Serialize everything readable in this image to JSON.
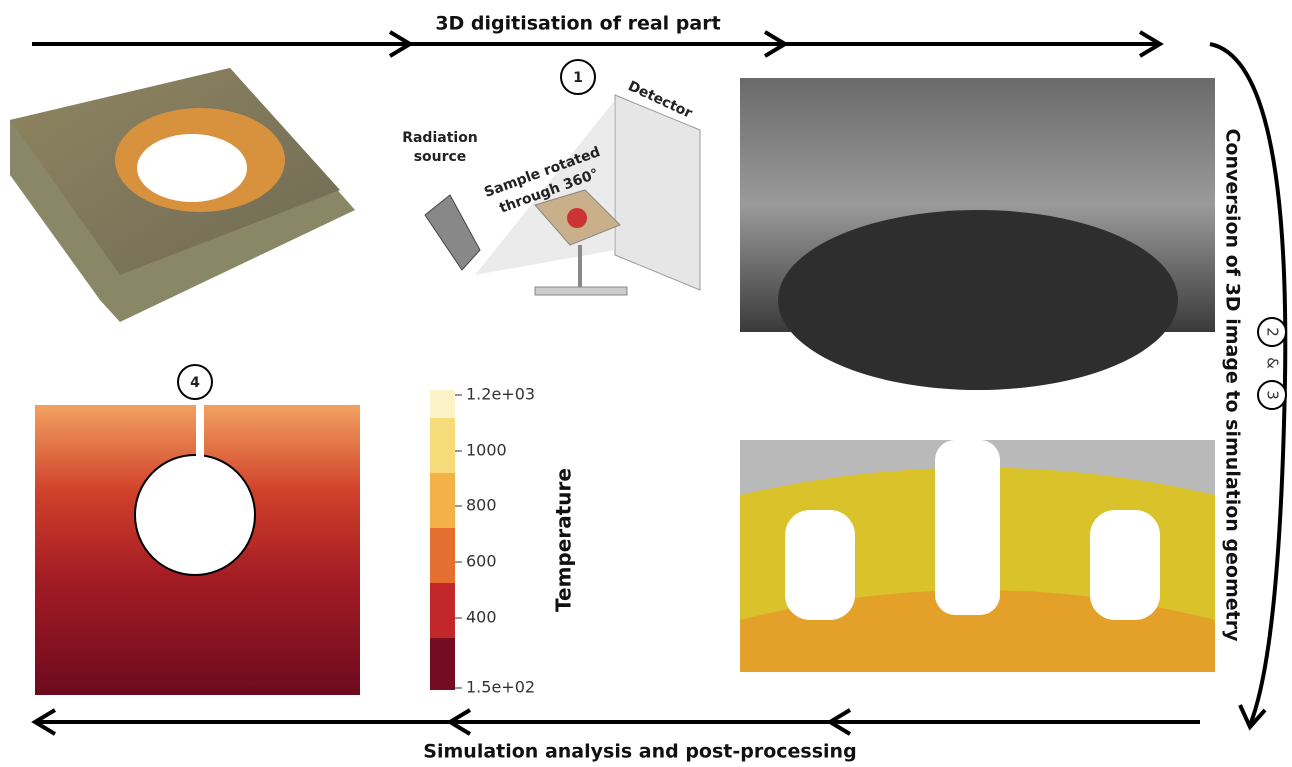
{
  "top_flow": {
    "label": "3D digitisation of real part"
  },
  "step1": {
    "number": "1",
    "detector": "Detector",
    "source": [
      "Radiation",
      "source"
    ],
    "sample": [
      "Sample rotated",
      "through 360°"
    ]
  },
  "right_flow": {
    "label": "Conversion of 3D image to simulation geometry",
    "step_a": "2",
    "joiner": "&",
    "step_b": "3"
  },
  "step4": {
    "number": "4"
  },
  "colorbar": {
    "title": "Temperature",
    "ticks": [
      "1.2e+03",
      "1000",
      "800",
      "600",
      "400",
      "1.5e+02"
    ]
  },
  "bottom_flow": {
    "label": "Simulation analysis and post-processing"
  }
}
